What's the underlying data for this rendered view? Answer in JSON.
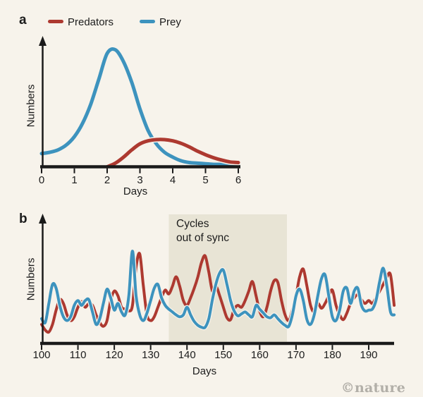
{
  "figure": {
    "panel_a_label": "a",
    "panel_b_label": "b",
    "watermark": "©nature"
  },
  "legend": {
    "predators_label": "Predators",
    "prey_label": "Prey"
  },
  "colors": {
    "background": "#f7f3eb",
    "predators": "#ad3930",
    "prey": "#3d93be",
    "shaded_region": "#e8e4d5",
    "axis": "#1a1a1a",
    "text": "#1c1c1c",
    "watermark": "#b2afa8"
  },
  "chart_data": [
    {
      "id": "panel-a",
      "type": "line",
      "title": "",
      "xlabel": "Days",
      "ylabel": "Numbers",
      "xlim": [
        0,
        6
      ],
      "ylim": [
        0,
        1
      ],
      "x_ticks": [
        0,
        1,
        2,
        3,
        4,
        5,
        6
      ],
      "grid": false,
      "legend_position": "top",
      "series": [
        {
          "name": "Prey",
          "color_key": "prey",
          "x_start": 0,
          "x_step": 0.25,
          "values": [
            0.11,
            0.12,
            0.14,
            0.18,
            0.25,
            0.36,
            0.52,
            0.73,
            0.94,
            0.97,
            0.87,
            0.7,
            0.48,
            0.3,
            0.19,
            0.12,
            0.08,
            0.05,
            0.035,
            0.03,
            0.025,
            0.02,
            0.02,
            0.02,
            0.02
          ]
        },
        {
          "name": "Predators",
          "color_key": "predators",
          "x_start": 2,
          "x_step": 0.25,
          "values": [
            0.0,
            0.03,
            0.08,
            0.14,
            0.19,
            0.215,
            0.225,
            0.225,
            0.215,
            0.195,
            0.165,
            0.13,
            0.1,
            0.075,
            0.055,
            0.04,
            0.035
          ]
        }
      ]
    },
    {
      "id": "panel-b",
      "type": "line",
      "title": "",
      "xlabel": "Days",
      "ylabel": "Numbers",
      "xlim": [
        100,
        197
      ],
      "ylim": [
        0,
        1
      ],
      "x_ticks": [
        100,
        110,
        120,
        130,
        140,
        150,
        160,
        170,
        180,
        190
      ],
      "grid": false,
      "annotation": {
        "line1": "Cycles",
        "line2": "out of sync",
        "shaded_x_range": [
          135,
          167.5
        ]
      },
      "series": [
        {
          "name": "Predators",
          "color_key": "predators",
          "x_start": 100,
          "x_step": 1,
          "values": [
            0.2,
            0.14,
            0.12,
            0.2,
            0.35,
            0.46,
            0.42,
            0.3,
            0.24,
            0.28,
            0.38,
            0.44,
            0.38,
            0.42,
            0.4,
            0.3,
            0.22,
            0.18,
            0.24,
            0.45,
            0.55,
            0.5,
            0.38,
            0.36,
            0.34,
            0.4,
            0.8,
            0.94,
            0.6,
            0.3,
            0.24,
            0.28,
            0.38,
            0.48,
            0.56,
            0.52,
            0.6,
            0.7,
            0.6,
            0.45,
            0.4,
            0.48,
            0.58,
            0.7,
            0.85,
            0.92,
            0.75,
            0.55,
            0.6,
            0.5,
            0.38,
            0.27,
            0.25,
            0.36,
            0.4,
            0.38,
            0.45,
            0.55,
            0.65,
            0.5,
            0.34,
            0.28,
            0.38,
            0.55,
            0.66,
            0.64,
            0.45,
            0.3,
            0.24,
            0.35,
            0.5,
            0.7,
            0.78,
            0.6,
            0.4,
            0.33,
            0.42,
            0.37,
            0.42,
            0.5,
            0.56,
            0.4,
            0.3,
            0.25,
            0.32,
            0.42,
            0.48,
            0.51,
            0.46,
            0.42,
            0.45,
            0.42,
            0.48,
            0.55,
            0.62,
            0.7,
            0.72,
            0.4
          ]
        },
        {
          "name": "Prey",
          "color_key": "prey",
          "x_start": 100,
          "x_step": 1,
          "values": [
            0.26,
            0.22,
            0.42,
            0.62,
            0.58,
            0.4,
            0.28,
            0.24,
            0.28,
            0.4,
            0.45,
            0.4,
            0.45,
            0.46,
            0.33,
            0.2,
            0.26,
            0.42,
            0.57,
            0.48,
            0.35,
            0.42,
            0.33,
            0.3,
            0.5,
            0.97,
            0.5,
            0.3,
            0.24,
            0.32,
            0.45,
            0.58,
            0.62,
            0.48,
            0.4,
            0.36,
            0.33,
            0.3,
            0.28,
            0.3,
            0.38,
            0.3,
            0.23,
            0.19,
            0.17,
            0.17,
            0.26,
            0.46,
            0.63,
            0.74,
            0.77,
            0.62,
            0.45,
            0.34,
            0.29,
            0.31,
            0.33,
            0.3,
            0.28,
            0.4,
            0.36,
            0.32,
            0.28,
            0.27,
            0.3,
            0.26,
            0.22,
            0.19,
            0.18,
            0.3,
            0.5,
            0.57,
            0.45,
            0.25,
            0.2,
            0.3,
            0.5,
            0.68,
            0.72,
            0.5,
            0.28,
            0.24,
            0.35,
            0.55,
            0.58,
            0.42,
            0.55,
            0.58,
            0.4,
            0.34,
            0.35,
            0.36,
            0.45,
            0.65,
            0.79,
            0.6,
            0.33,
            0.3
          ]
        }
      ]
    }
  ]
}
